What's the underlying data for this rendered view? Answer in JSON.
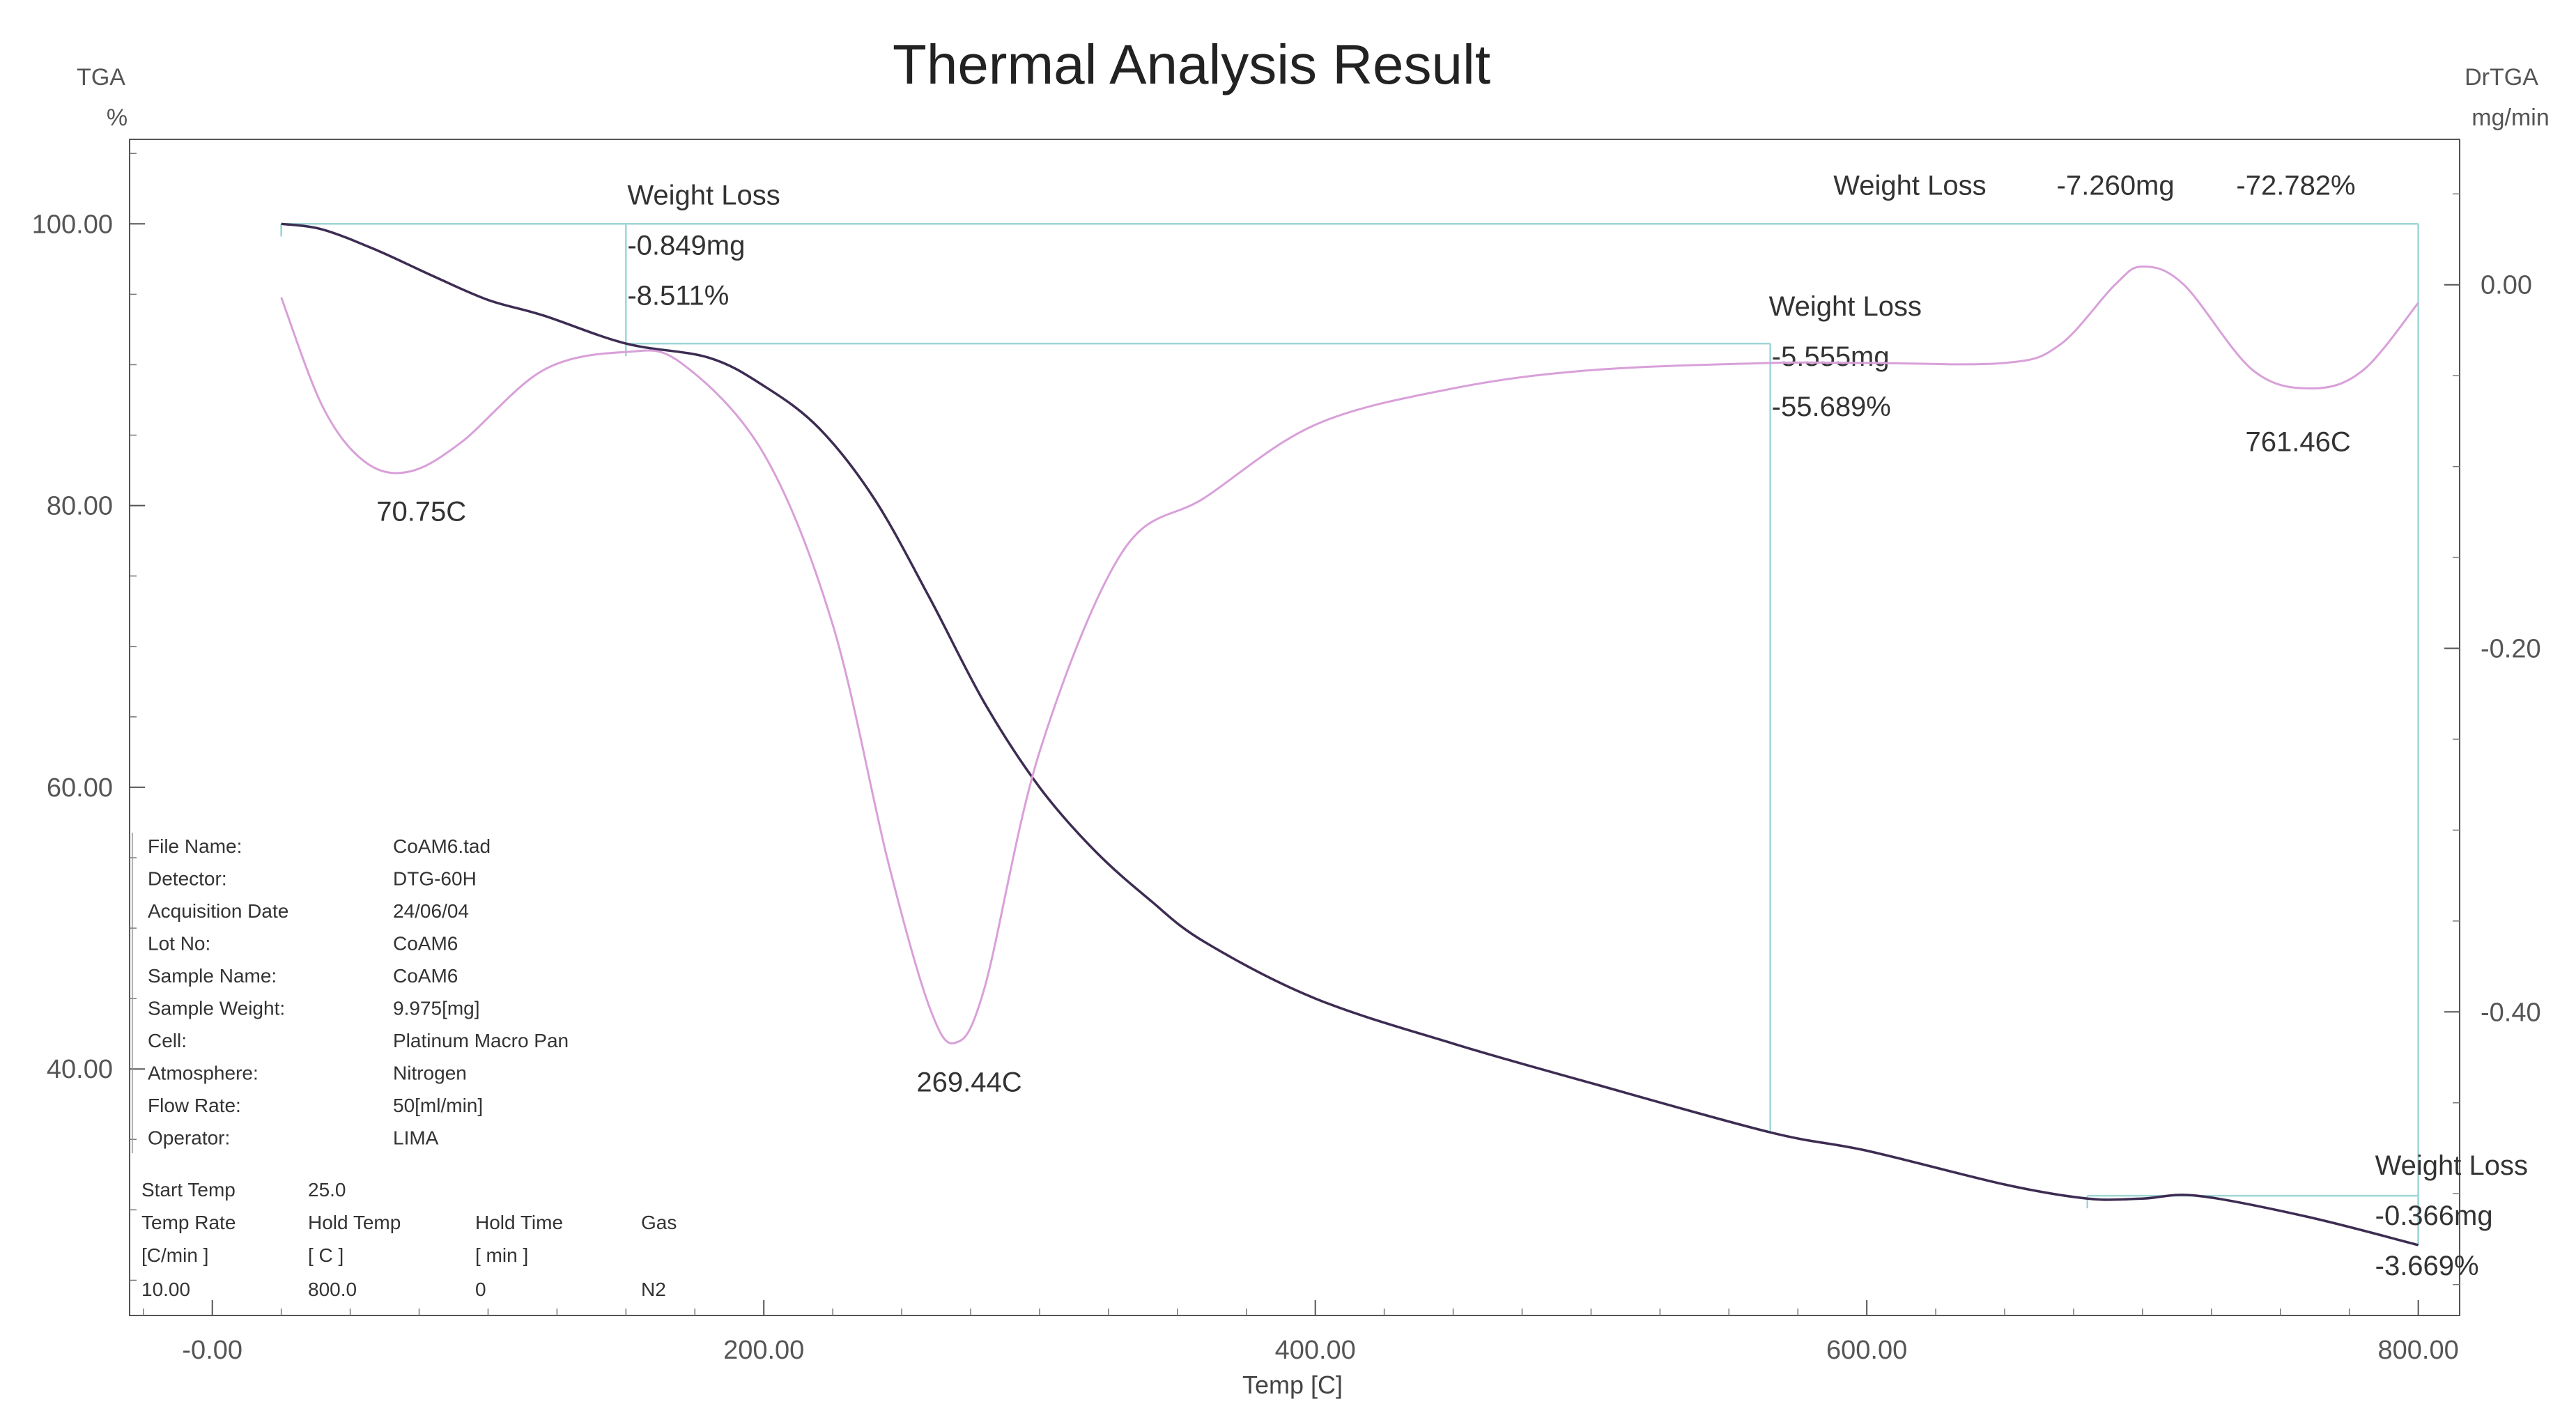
{
  "chart_data": {
    "type": "line",
    "title": "Thermal Analysis Result",
    "xlabel": "Temp [C]",
    "ylabel_left": [
      "TGA",
      "%"
    ],
    "ylabel_right": [
      "DrTGA",
      "mg/min"
    ],
    "xlim": [
      -30,
      815
    ],
    "ylim_left": [
      22.5,
      106
    ],
    "ylim_right": [
      -0.567,
      0.08
    ],
    "x_ticks": [
      {
        "value": 0,
        "label": "-0.00"
      },
      {
        "value": 200,
        "label": "200.00"
      },
      {
        "value": 400,
        "label": "400.00"
      },
      {
        "value": 600,
        "label": "600.00"
      },
      {
        "value": 800,
        "label": "800.00"
      }
    ],
    "y_left_ticks": [
      {
        "value": 100,
        "label": "100.00"
      },
      {
        "value": 80,
        "label": "80.00"
      },
      {
        "value": 60,
        "label": "60.00"
      },
      {
        "value": 40,
        "label": "40.00"
      }
    ],
    "y_right_ticks": [
      {
        "value": 0,
        "label": "0.00"
      },
      {
        "value": -0.2,
        "label": "-0.20"
      },
      {
        "value": -0.4,
        "label": "-0.40"
      }
    ],
    "grid": false,
    "colors": {
      "tga": "#3d2c52",
      "dtga": "#d9a0d9",
      "annotation": "#9fd6d6"
    },
    "series": [
      {
        "key": "tga",
        "axis": "left",
        "x": [
          25,
          40,
          60,
          80,
          100,
          120,
          150,
          180,
          200,
          220,
          240,
          260,
          280,
          300,
          320,
          340,
          360,
          400,
          450,
          500,
          565,
          600,
          650,
          680,
          700,
          720,
          760,
          800
        ],
        "y": [
          100.0,
          99.6,
          98.1,
          96.3,
          94.6,
          93.5,
          91.5,
          90.5,
          88.5,
          85.5,
          80.5,
          73.5,
          66.0,
          60.0,
          55.5,
          52.0,
          49.0,
          45.0,
          41.8,
          39.0,
          35.5,
          34.2,
          31.8,
          30.8,
          30.8,
          31.0,
          29.5,
          27.5
        ]
      },
      {
        "key": "dtga",
        "axis": "right",
        "x": [
          25,
          40,
          55,
          70.75,
          90,
          120,
          150,
          170,
          200,
          225,
          245,
          260,
          269.44,
          280,
          300,
          330,
          360,
          400,
          450,
          500,
          565,
          600,
          650,
          670,
          690,
          700,
          715,
          740,
          761.46,
          780,
          800
        ],
        "y": [
          -0.007,
          -0.067,
          -0.097,
          -0.103,
          -0.087,
          -0.047,
          -0.037,
          -0.043,
          -0.093,
          -0.187,
          -0.317,
          -0.397,
          -0.417,
          -0.387,
          -0.257,
          -0.147,
          -0.117,
          -0.077,
          -0.057,
          -0.047,
          -0.043,
          -0.043,
          -0.043,
          -0.033,
          -0.0,
          0.01,
          -0.0,
          -0.047,
          -0.057,
          -0.047,
          -0.01
        ]
      }
    ],
    "peaks": [
      {
        "label": "70.75C",
        "x": 70.75,
        "y": -0.103
      },
      {
        "label": "269.44C",
        "x": 269.44,
        "y": -0.417
      },
      {
        "label": "761.46C",
        "x": 761.46,
        "y": -0.057
      }
    ],
    "weight_loss": [
      {
        "title": "Weight Loss",
        "mg": "-0.849mg",
        "pct": "-8.511%",
        "x_start": 25,
        "x_end": 150,
        "y_top": 100.0,
        "y_bottom": 91.5
      },
      {
        "title": "Weight Loss",
        "mg": "-5.555mg",
        "pct": "-55.689%",
        "x_start": 150,
        "x_end": 565,
        "y_top": 91.5,
        "y_bottom": 35.5
      },
      {
        "title": "Weight Loss",
        "mg": "-0.366mg",
        "pct": "-3.669%",
        "x_start": 680,
        "x_end": 800,
        "y_top": 31.0,
        "y_bottom": 27.5
      },
      {
        "title": "Weight Loss",
        "mg": "-7.260mg",
        "pct": "-72.782%",
        "x_start": 25,
        "x_end": 800,
        "y_top": 100.0,
        "y_bottom": 27.5
      }
    ],
    "info_block": [
      {
        "label": "File Name:",
        "value": "CoAM6.tad"
      },
      {
        "label": "Detector:",
        "value": "DTG-60H"
      },
      {
        "label": "Acquisition Date",
        "value": "24/06/04"
      },
      {
        "label": "Lot No:",
        "value": "CoAM6"
      },
      {
        "label": "Sample Name:",
        "value": "CoAM6"
      },
      {
        "label": "Sample Weight:",
        "value": "9.975[mg]"
      },
      {
        "label": "Cell:",
        "value": "Platinum Macro Pan"
      },
      {
        "label": "Atmosphere:",
        "value": "Nitrogen"
      },
      {
        "label": "Flow Rate:",
        "value": "50[ml/min]"
      },
      {
        "label": "Operator:",
        "value": "LIMA"
      }
    ],
    "program": {
      "start_temp_label": "Start Temp",
      "start_temp_value": "25.0",
      "headers": [
        "Temp Rate",
        "Hold Temp",
        "Hold Time",
        "Gas"
      ],
      "units": [
        "[C/min ]",
        "[ C ]",
        "[ min ]",
        ""
      ],
      "rows": [
        [
          "10.00",
          "800.0",
          "0",
          "N2"
        ]
      ]
    }
  }
}
